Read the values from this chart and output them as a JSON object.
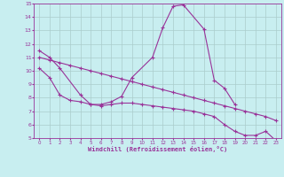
{
  "xlabel": "Windchill (Refroidissement éolien,°C)",
  "background_color": "#c8eef0",
  "line_color": "#993399",
  "grid_color": "#aacccc",
  "s1_x": [
    0,
    1,
    2,
    4,
    5,
    6,
    7,
    8,
    9,
    11,
    12,
    13,
    14,
    16,
    17,
    18,
    19
  ],
  "s1_y": [
    11.5,
    11.0,
    10.2,
    8.2,
    7.5,
    7.5,
    7.7,
    8.1,
    9.5,
    11.0,
    13.2,
    14.8,
    14.9,
    13.1,
    9.3,
    8.7,
    7.5
  ],
  "s2_x": [
    0,
    1,
    2,
    3,
    4,
    5,
    6,
    7,
    8,
    9,
    10,
    11,
    12,
    13,
    14,
    15,
    16,
    17,
    18,
    19,
    20,
    21,
    22,
    23
  ],
  "s2_y": [
    11.0,
    10.8,
    10.6,
    10.4,
    10.2,
    10.0,
    9.8,
    9.6,
    9.4,
    9.2,
    9.0,
    8.8,
    8.6,
    8.4,
    8.2,
    8.0,
    7.8,
    7.6,
    7.4,
    7.2,
    7.0,
    6.8,
    6.6,
    6.3
  ],
  "s3_x": [
    0,
    1,
    2,
    3,
    4,
    5,
    6,
    7,
    8,
    9,
    10,
    11,
    12,
    13,
    14,
    15,
    16,
    17,
    18,
    19,
    20,
    21,
    22,
    23
  ],
  "s3_y": [
    10.2,
    9.5,
    8.2,
    7.8,
    7.7,
    7.5,
    7.4,
    7.5,
    7.6,
    7.6,
    7.5,
    7.4,
    7.3,
    7.2,
    7.1,
    7.0,
    6.8,
    6.6,
    6.0,
    5.5,
    5.2,
    5.2,
    5.5,
    4.8
  ],
  "ylim": [
    5,
    15
  ],
  "xlim": [
    0,
    23
  ],
  "yticks": [
    5,
    6,
    7,
    8,
    9,
    10,
    11,
    12,
    13,
    14,
    15
  ],
  "xticks": [
    0,
    1,
    2,
    3,
    4,
    5,
    6,
    7,
    8,
    9,
    10,
    11,
    12,
    13,
    14,
    15,
    16,
    17,
    18,
    19,
    20,
    21,
    22,
    23
  ]
}
